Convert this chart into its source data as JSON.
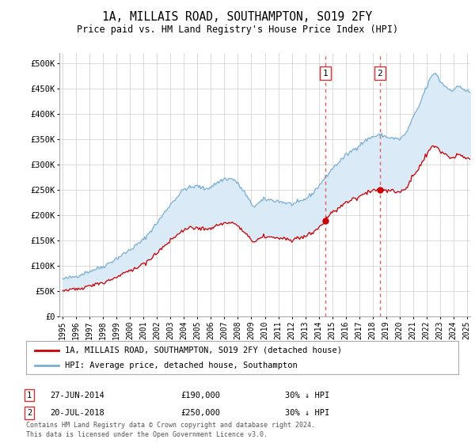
{
  "title": "1A, MILLAIS ROAD, SOUTHAMPTON, SO19 2FY",
  "subtitle": "Price paid vs. HM Land Registry's House Price Index (HPI)",
  "legend_line1": "1A, MILLAIS ROAD, SOUTHAMPTON, SO19 2FY (detached house)",
  "legend_line2": "HPI: Average price, detached house, Southampton",
  "footnote1": "Contains HM Land Registry data © Crown copyright and database right 2024.",
  "footnote2": "This data is licensed under the Open Government Licence v3.0.",
  "sale1_date": "27-JUN-2014",
  "sale1_price": "£190,000",
  "sale1_hpi": "30% ↓ HPI",
  "sale2_date": "20-JUL-2018",
  "sale2_price": "£250,000",
  "sale2_hpi": "30% ↓ HPI",
  "sale1_x": 2014.49,
  "sale1_y": 190000,
  "sale2_x": 2018.55,
  "sale2_y": 250000,
  "vline1_x": 2014.49,
  "vline2_x": 2018.55,
  "xlim": [
    1994.75,
    2025.25
  ],
  "ylim": [
    0,
    520000
  ],
  "yticks": [
    0,
    50000,
    100000,
    150000,
    200000,
    250000,
    300000,
    350000,
    400000,
    450000,
    500000
  ],
  "ytick_labels": [
    "£0",
    "£50K",
    "£100K",
    "£150K",
    "£200K",
    "£250K",
    "£300K",
    "£350K",
    "£400K",
    "£450K",
    "£500K"
  ],
  "hpi_color": "#7aafd4",
  "sale_color": "#cc0000",
  "shade_color": "#daeaf6",
  "vline_color": "#e06060",
  "background_color": "#ffffff",
  "grid_color": "#cccccc"
}
